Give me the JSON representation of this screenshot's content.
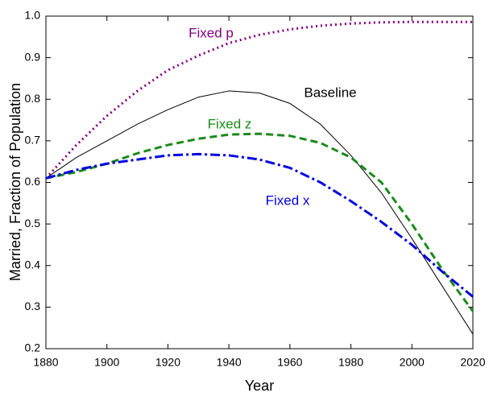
{
  "chart_data": {
    "type": "line",
    "x_label": "Year",
    "y_label": "Married, Fraction of Population",
    "x": [
      1880,
      1890,
      1900,
      1910,
      1920,
      1930,
      1940,
      1950,
      1960,
      1970,
      1980,
      1990,
      2000,
      2010,
      2020
    ],
    "series": [
      {
        "name": "Fixed p",
        "color": "#800080",
        "dash": "2 4",
        "width": 3,
        "values": [
          0.61,
          0.69,
          0.76,
          0.82,
          0.87,
          0.905,
          0.935,
          0.955,
          0.968,
          0.977,
          0.982,
          0.985,
          0.986,
          0.986,
          0.986
        ]
      },
      {
        "name": "Baseline",
        "color": "#000000",
        "dash": "none",
        "width": 1,
        "values": [
          0.61,
          0.66,
          0.7,
          0.74,
          0.775,
          0.805,
          0.82,
          0.815,
          0.79,
          0.74,
          0.665,
          0.575,
          0.465,
          0.35,
          0.235
        ]
      },
      {
        "name": "Fixed z",
        "color": "#1a8a1a",
        "dash": "9 5",
        "width": 3,
        "values": [
          0.61,
          0.625,
          0.645,
          0.67,
          0.69,
          0.705,
          0.715,
          0.717,
          0.712,
          0.695,
          0.66,
          0.6,
          0.5,
          0.39,
          0.29
        ]
      },
      {
        "name": "Fixed x",
        "color": "#0000e0",
        "dash": "12 4 3 4",
        "width": 3,
        "values": [
          0.61,
          0.63,
          0.645,
          0.655,
          0.665,
          0.668,
          0.665,
          0.655,
          0.635,
          0.6,
          0.555,
          0.505,
          0.45,
          0.385,
          0.325
        ]
      }
    ],
    "xlim": [
      1880,
      2020
    ],
    "xticks": [
      1880,
      1900,
      1920,
      1940,
      1960,
      1980,
      2000,
      2020
    ],
    "ylim": [
      0.2,
      1
    ],
    "yticks": [
      0.2,
      0.3,
      0.4,
      0.5,
      0.6,
      0.7,
      0.8,
      0.9,
      {
        "value": 1,
        "label": "1.0"
      }
    ],
    "grid": false
  }
}
